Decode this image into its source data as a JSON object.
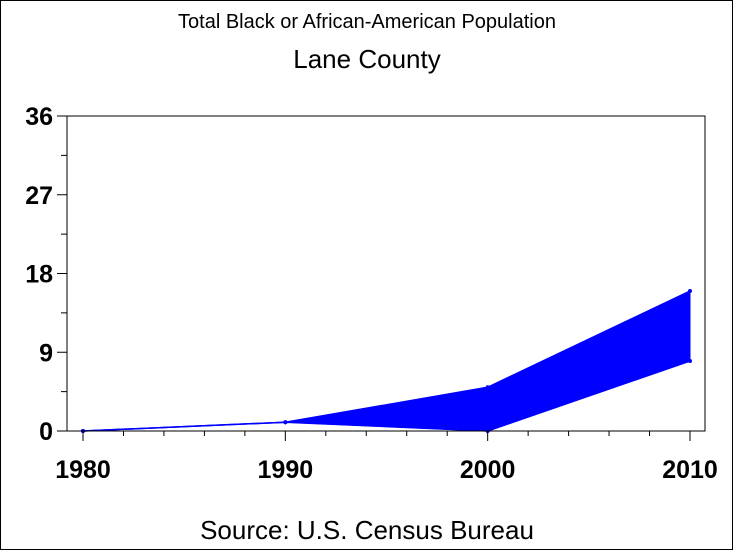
{
  "chart_data": {
    "type": "area",
    "title": "Total Black or African-American Population",
    "subtitle": "Lane County",
    "footnote": "Source: U.S. Census Bureau",
    "x": [
      1980,
      1990,
      2000,
      2010
    ],
    "series": [
      {
        "values": [
          0,
          1,
          5,
          16
        ]
      },
      {
        "values": [
          0,
          1,
          0,
          8
        ]
      }
    ],
    "xlim": [
      1980,
      2010
    ],
    "ylim": [
      0,
      36
    ],
    "yticks": [
      0,
      9,
      18,
      27,
      36
    ],
    "xticks": [
      1980,
      1990,
      2000,
      2010
    ],
    "grid": false,
    "fill_color": "#0000ff"
  }
}
